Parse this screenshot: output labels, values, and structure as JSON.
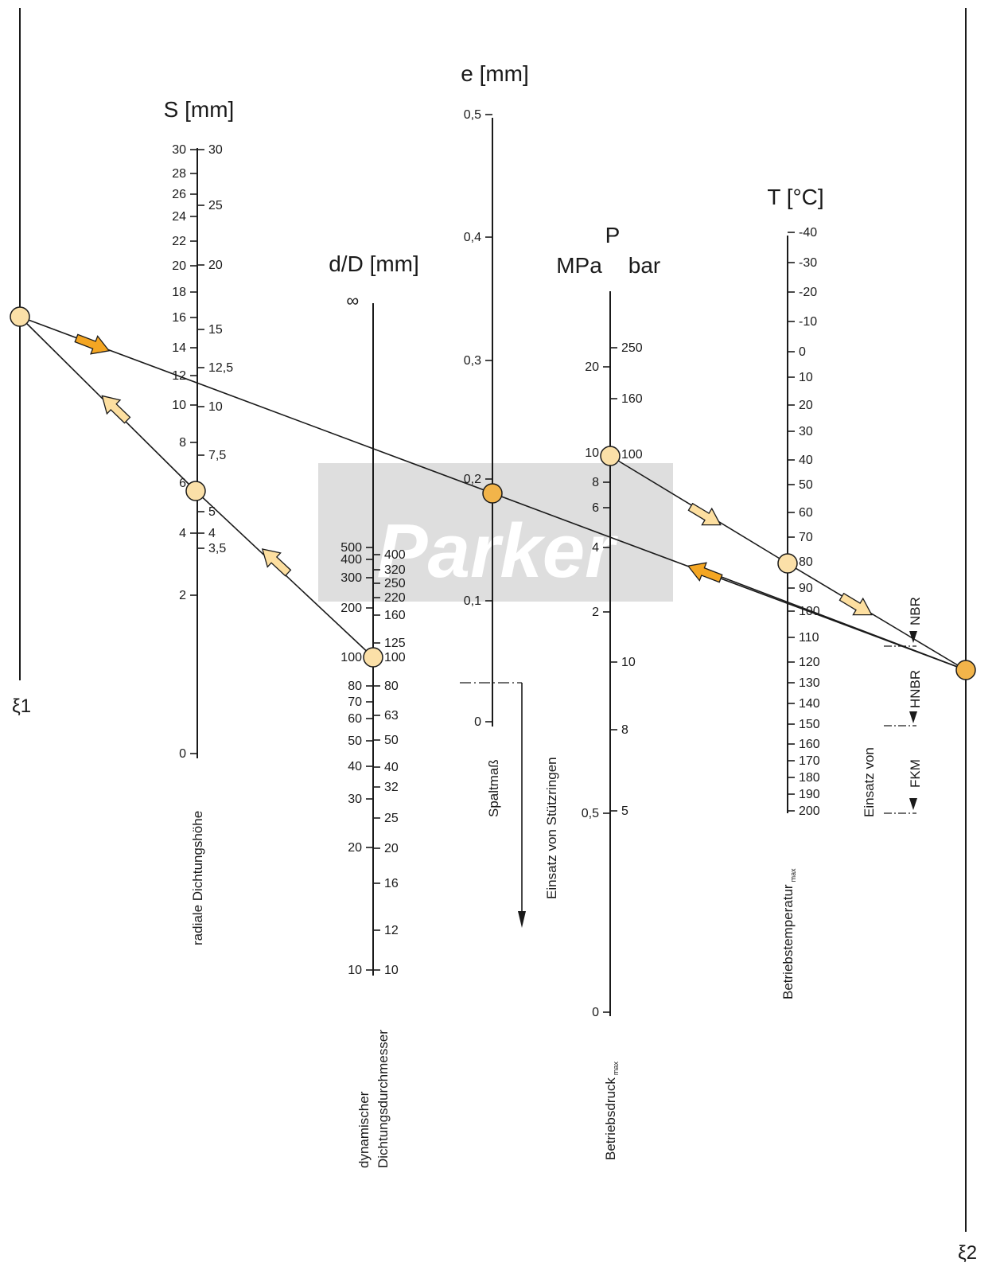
{
  "colors": {
    "ink": "#1a1a1a",
    "watermark_bg": "#dedede",
    "watermark_text": "#ffffff",
    "node_light": "#fbe0a8",
    "node_dark": "#f2b44a",
    "arrow_light": "#fddfa0",
    "arrow_dark": "#f4a623"
  },
  "watermark": {
    "text": "Parker"
  },
  "xi1": {
    "label": "ξ1"
  },
  "xi2": {
    "label": "ξ2"
  },
  "s_axis": {
    "title": "S [mm]",
    "caption": "radiale Dichtungshöhe",
    "left_ticks": [
      "30",
      "28",
      "26",
      "24",
      "22",
      "20",
      "18",
      "16",
      "14",
      "12",
      "10",
      "8",
      "6",
      "4",
      "2",
      "0"
    ],
    "right_ticks": [
      "30",
      "25",
      "20",
      "15",
      "12,5",
      "10",
      "7,5",
      "5",
      "4",
      "3,5"
    ]
  },
  "d_axis": {
    "title": "d/D [mm]",
    "caption_line1": "dynamischer",
    "caption_line2": "Dichtungsdurchmesser",
    "infinity": "∞",
    "left_ticks": [
      "500",
      "400",
      "300",
      "200",
      "100",
      "80",
      "70",
      "60",
      "50",
      "40",
      "30",
      "20",
      "10"
    ],
    "right_ticks": [
      "400",
      "320",
      "250",
      "220",
      "160",
      "125",
      "100",
      "80",
      "63",
      "50",
      "40",
      "32",
      "25",
      "20",
      "16",
      "12",
      "10"
    ]
  },
  "e_axis": {
    "title": "e [mm]",
    "caption": "Spaltmaß",
    "left_ticks": [
      "0,5",
      "0,4",
      "0,3",
      "0,2",
      "0,1",
      "0"
    ],
    "support_rings": "Einsatz von Stützringen"
  },
  "p_axis": {
    "title": "P",
    "unit_mpa": "MPa",
    "unit_bar": "bar",
    "caption": "Betriebsdruck",
    "caption_sub": "max",
    "left_ticks": [
      "20",
      "10",
      "8",
      "6",
      "4",
      "2",
      "0,5",
      "0"
    ],
    "right_ticks": [
      "250",
      "160",
      "100",
      "10",
      "8",
      "5"
    ]
  },
  "t_axis": {
    "title": "T [°C]",
    "caption": "Betriebstemperatur",
    "caption_sub": "max",
    "right_ticks": [
      "-40",
      "-30",
      "-20",
      "-10",
      "0",
      "10",
      "20",
      "30",
      "40",
      "50",
      "60",
      "70",
      "80",
      "90",
      "100",
      "110",
      "120",
      "130",
      "140",
      "150",
      "160",
      "170",
      "180",
      "190",
      "200"
    ]
  },
  "materials": {
    "heading": "Einsatz von",
    "nbr": "NBR",
    "hnbr": "HNBR",
    "fkm": "FKM"
  }
}
